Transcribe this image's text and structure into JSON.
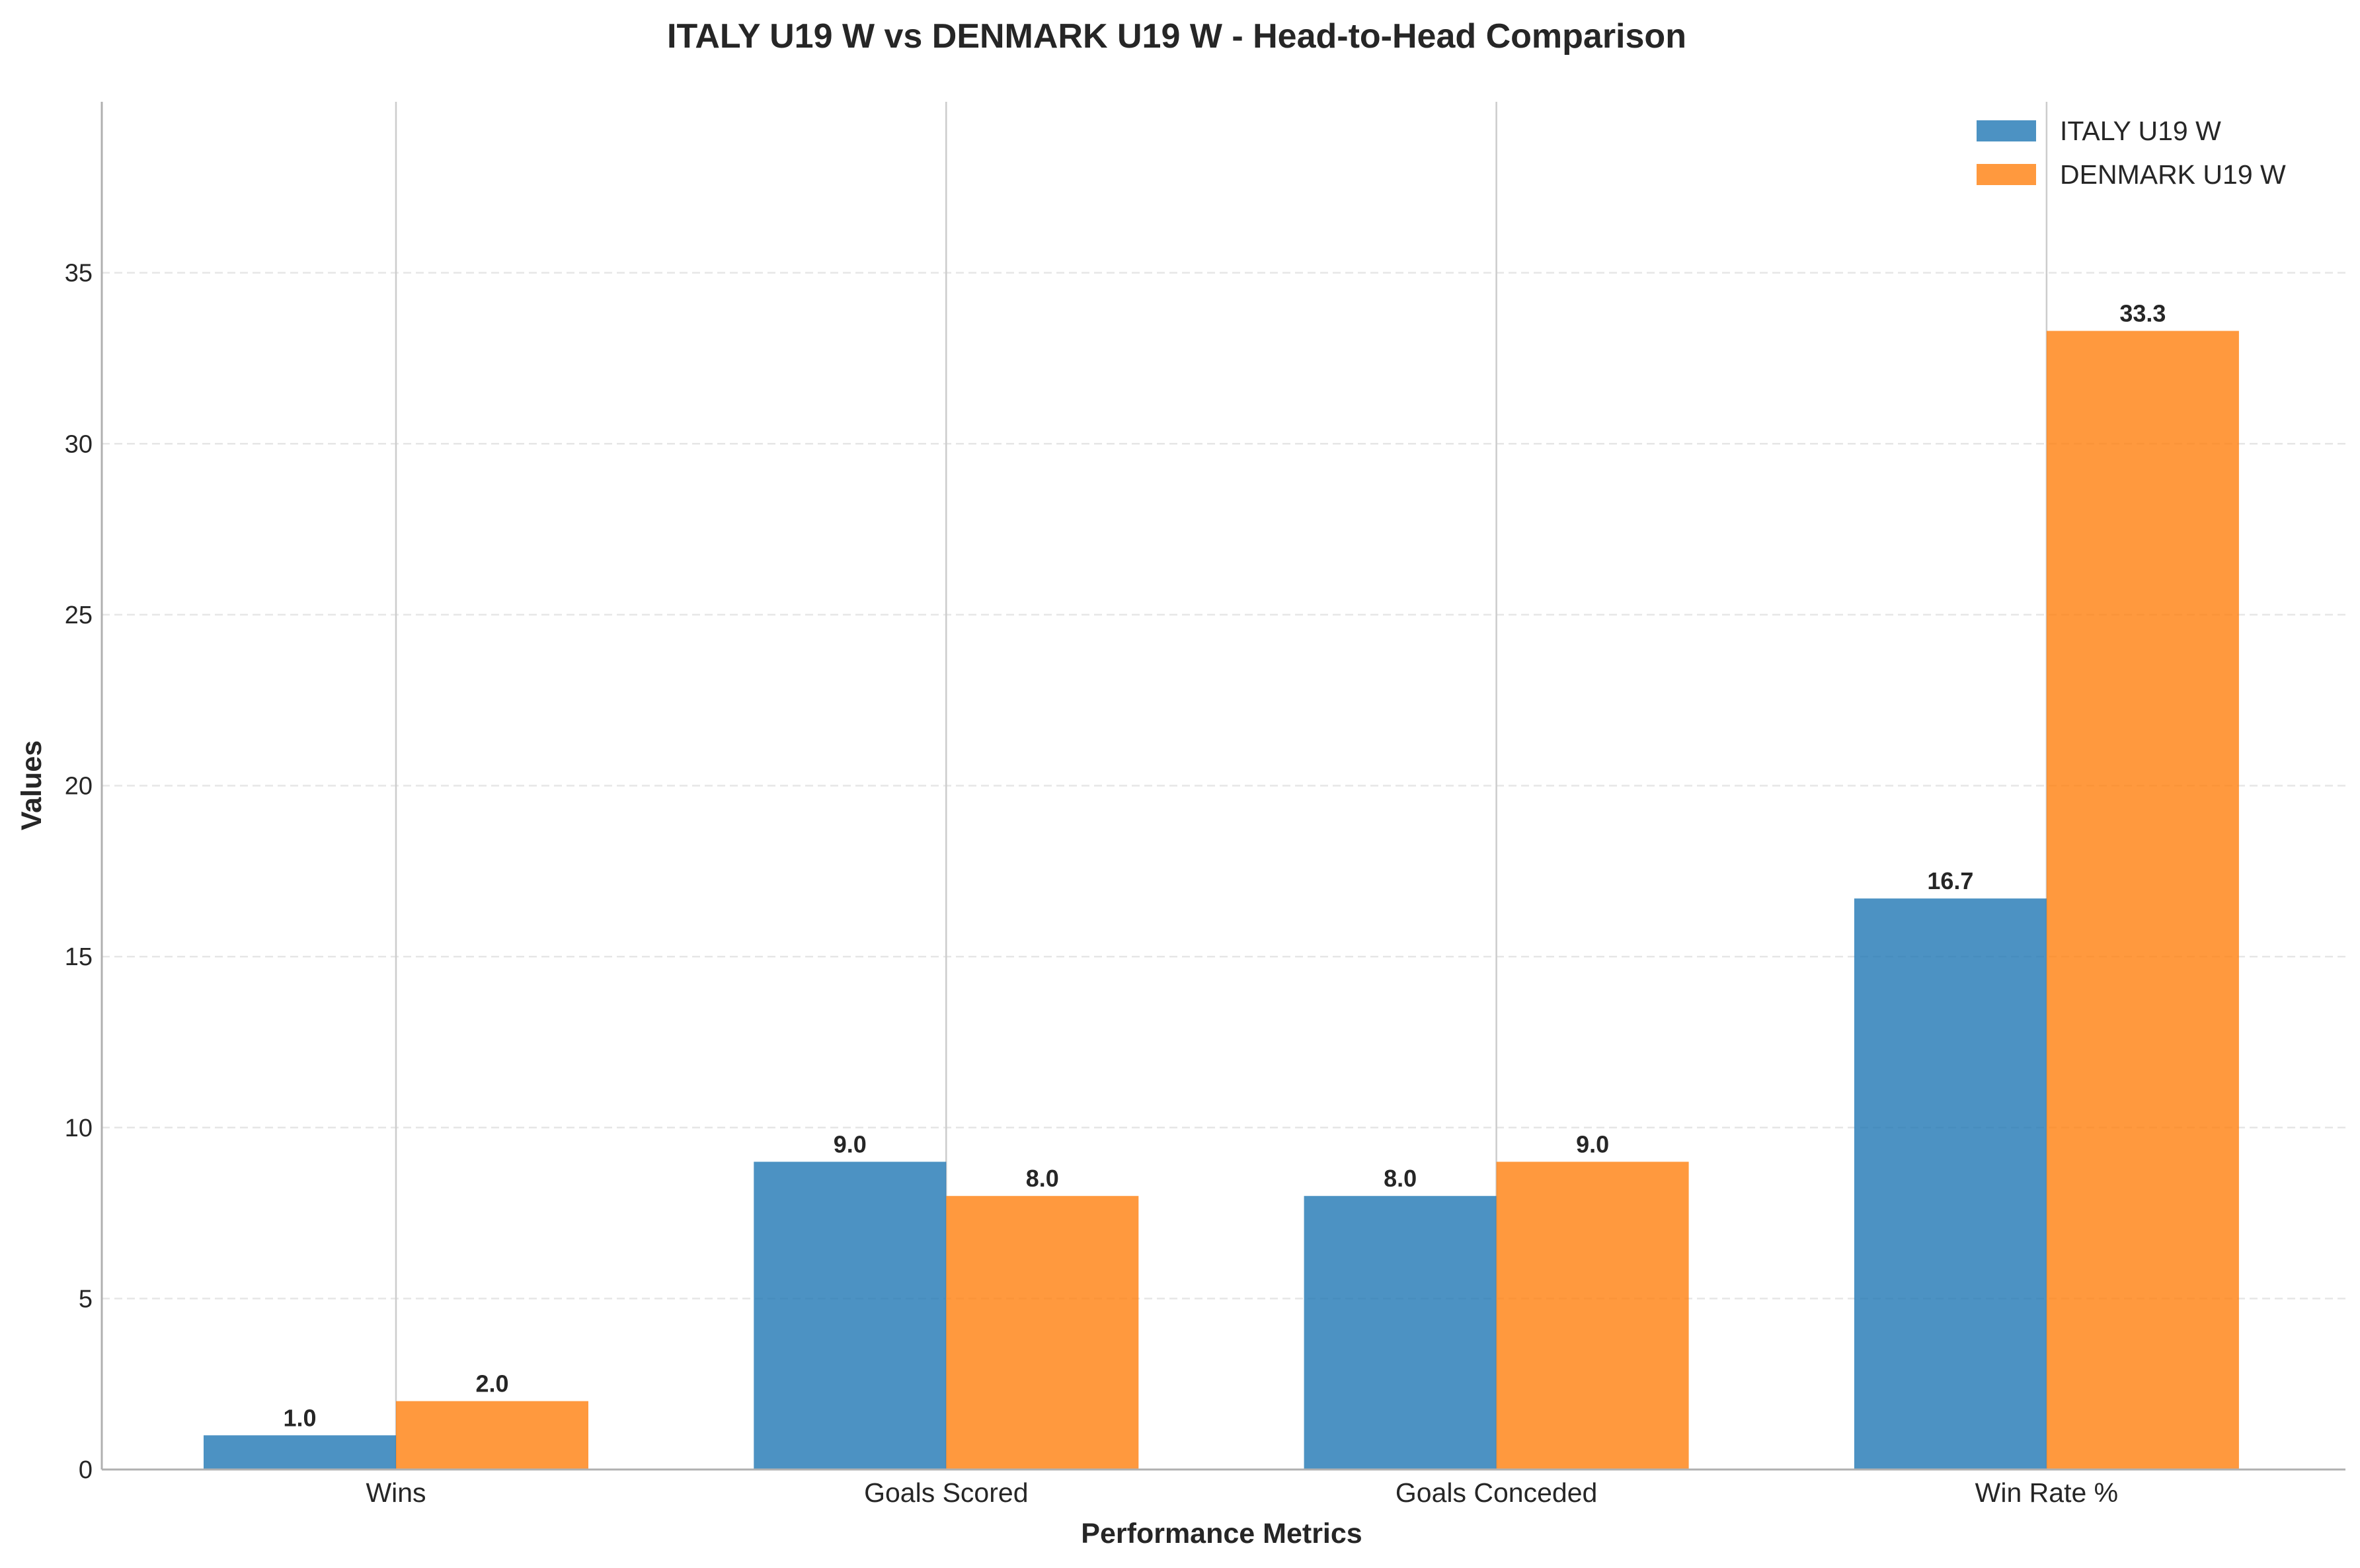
{
  "chart_data": {
    "type": "bar",
    "title": "ITALY U19 W vs DENMARK U19 W - Head-to-Head Comparison",
    "xlabel": "Performance Metrics",
    "ylabel": "Values",
    "categories": [
      "Wins",
      "Goals Scored",
      "Goals Conceded",
      "Win Rate %"
    ],
    "series": [
      {
        "name": "ITALY U19 W",
        "values": [
          1.0,
          9.0,
          8.0,
          16.7
        ],
        "labels": [
          "1.0",
          "9.0",
          "8.0",
          "16.7"
        ],
        "color": "#1f77b4"
      },
      {
        "name": "DENMARK U19 W",
        "values": [
          2.0,
          8.0,
          9.0,
          33.3
        ],
        "labels": [
          "2.0",
          "8.0",
          "9.0",
          "33.3"
        ],
        "color": "#ff7f0e"
      }
    ],
    "ylim": [
      0,
      40
    ],
    "yticks": [
      0,
      5,
      10,
      15,
      20,
      25,
      30,
      35
    ],
    "ytick_labels": [
      "0",
      "5",
      "10",
      "15",
      "20",
      "25",
      "30",
      "35"
    ],
    "grid": "y dashed, x solid at category centers",
    "legend_position": "top-right"
  }
}
